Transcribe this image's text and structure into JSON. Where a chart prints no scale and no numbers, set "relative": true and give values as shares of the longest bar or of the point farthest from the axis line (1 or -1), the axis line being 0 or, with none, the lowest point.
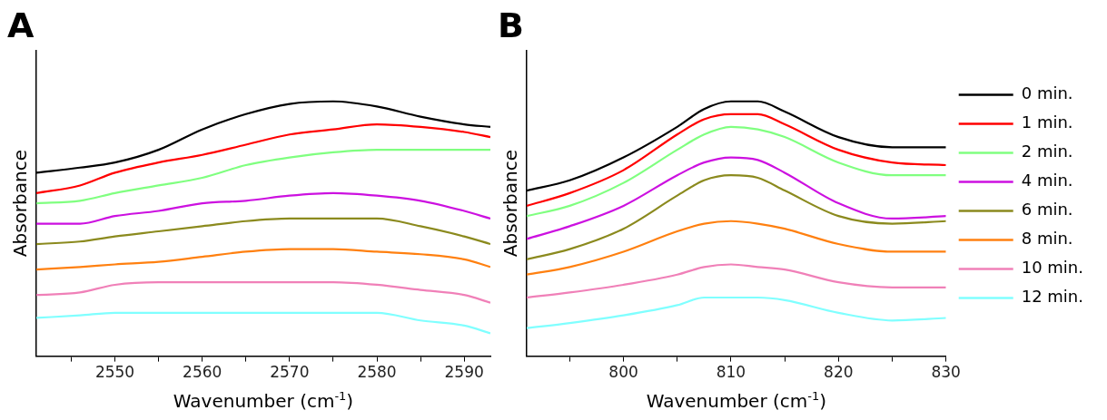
{
  "chart_data": [
    {
      "type": "line",
      "title": "A",
      "xlabel": "Wavenumber (cm$^{-1}$)",
      "ylabel": "Absorbance",
      "relative": true,
      "marker": "none",
      "grid": false,
      "xlim": [
        2541,
        2593
      ],
      "xticks": [
        {
          "value": 2545,
          "label": null
        },
        2550,
        {
          "value": 2555,
          "label": null
        },
        2560,
        {
          "value": 2565,
          "label": null
        },
        2570,
        {
          "value": 2575,
          "label": null
        },
        2580,
        {
          "value": 2585,
          "label": null
        },
        2590
      ],
      "x": [
        2541,
        2546,
        2550,
        2555,
        2560,
        2565,
        2570,
        2575,
        2580,
        2585,
        2590,
        2593
      ],
      "series": [
        {
          "color": "#000000",
          "values": [
            0.72,
            0.74,
            0.76,
            0.81,
            0.89,
            0.95,
            0.99,
            1.0,
            0.98,
            0.94,
            0.91,
            0.9
          ]
        },
        {
          "color": "#ff0000",
          "values": [
            0.64,
            0.67,
            0.72,
            0.76,
            0.79,
            0.83,
            0.87,
            0.89,
            0.91,
            0.9,
            0.88,
            0.86
          ]
        },
        {
          "color": "#80ff80",
          "values": [
            0.6,
            0.61,
            0.64,
            0.67,
            0.7,
            0.75,
            0.78,
            0.8,
            0.81,
            0.81,
            0.81,
            0.81
          ]
        },
        {
          "color": "#cc11e0",
          "values": [
            0.52,
            0.52,
            0.55,
            0.57,
            0.6,
            0.61,
            0.63,
            0.64,
            0.63,
            0.61,
            0.57,
            0.54
          ]
        },
        {
          "color": "#8b8a1e",
          "values": [
            0.44,
            0.45,
            0.47,
            0.49,
            0.51,
            0.53,
            0.54,
            0.54,
            0.54,
            0.51,
            0.47,
            0.44
          ]
        },
        {
          "color": "#ff8010",
          "values": [
            0.34,
            0.35,
            0.36,
            0.37,
            0.39,
            0.41,
            0.42,
            0.42,
            0.41,
            0.4,
            0.38,
            0.35
          ]
        },
        {
          "color": "#f080b8",
          "values": [
            0.24,
            0.25,
            0.28,
            0.29,
            0.29,
            0.29,
            0.29,
            0.29,
            0.28,
            0.26,
            0.24,
            0.21
          ]
        },
        {
          "color": "#80ffff",
          "values": [
            0.15,
            0.16,
            0.17,
            0.17,
            0.17,
            0.17,
            0.17,
            0.17,
            0.17,
            0.14,
            0.12,
            0.09
          ]
        }
      ]
    },
    {
      "type": "line",
      "title": "B",
      "xlabel": "Wavenumber (cm$^{-1}$)",
      "ylabel": "Absorbance",
      "relative": true,
      "marker": "none",
      "grid": false,
      "legend": "right",
      "xlim": [
        791,
        830
      ],
      "xticks": [
        {
          "value": 795,
          "label": null
        },
        800,
        {
          "value": 805,
          "label": null
        },
        810,
        {
          "value": 815,
          "label": null
        },
        820,
        {
          "value": 825,
          "label": null
        },
        830
      ],
      "x": [
        791,
        795,
        800,
        805,
        807.5,
        810,
        812.5,
        815,
        820,
        825,
        830
      ],
      "series": [
        {
          "name": "0 min.",
          "color": "#000000",
          "values": [
            0.65,
            0.69,
            0.78,
            0.9,
            0.97,
            1.0,
            1.0,
            0.96,
            0.86,
            0.82,
            0.82
          ]
        },
        {
          "name": "1 min.",
          "color": "#ff0000",
          "values": [
            0.59,
            0.64,
            0.73,
            0.87,
            0.93,
            0.95,
            0.95,
            0.91,
            0.81,
            0.76,
            0.75
          ]
        },
        {
          "name": "2 min.",
          "color": "#80ff80",
          "values": [
            0.55,
            0.59,
            0.68,
            0.81,
            0.87,
            0.9,
            0.89,
            0.86,
            0.76,
            0.71,
            0.71
          ]
        },
        {
          "name": "4 min.",
          "color": "#cc11e0",
          "values": [
            0.46,
            0.51,
            0.59,
            0.71,
            0.76,
            0.78,
            0.77,
            0.72,
            0.6,
            0.54,
            0.55
          ]
        },
        {
          "name": "6 min.",
          "color": "#8b8a1e",
          "values": [
            0.38,
            0.42,
            0.5,
            0.63,
            0.69,
            0.71,
            0.7,
            0.65,
            0.55,
            0.52,
            0.53
          ]
        },
        {
          "name": "8 min.",
          "color": "#ff8010",
          "values": [
            0.32,
            0.35,
            0.41,
            0.49,
            0.52,
            0.53,
            0.52,
            0.5,
            0.44,
            0.41,
            0.41
          ]
        },
        {
          "name": "10 min.",
          "color": "#f080b8",
          "values": [
            0.23,
            0.25,
            0.28,
            0.32,
            0.35,
            0.36,
            0.35,
            0.34,
            0.29,
            0.27,
            0.27
          ]
        },
        {
          "name": "12 min.",
          "color": "#80ffff",
          "values": [
            0.11,
            0.13,
            0.16,
            0.2,
            0.23,
            0.23,
            0.23,
            0.22,
            0.17,
            0.14,
            0.15
          ]
        }
      ]
    }
  ]
}
